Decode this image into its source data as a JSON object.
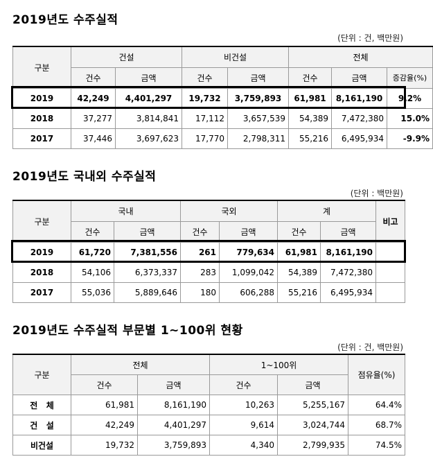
{
  "sections": [
    {
      "title": "2019년도 수주실적",
      "unit": "(단위 : 건, 백만원)",
      "headers": {
        "category": "구분",
        "group1": "건설",
        "group2": "비건설",
        "group3": "전체",
        "count": "건수",
        "amount": "금액",
        "rate": "증감율(%)"
      },
      "rows": [
        {
          "year": "2019",
          "c1": "42,249",
          "a1": "4,401,297",
          "c2": "19,732",
          "a2": "3,759,893",
          "c3": "61,981",
          "a3": "8,161,190",
          "rate": "9.2%"
        },
        {
          "year": "2018",
          "c1": "37,277",
          "a1": "3,814,841",
          "c2": "17,112",
          "a2": "3,657,539",
          "c3": "54,389",
          "a3": "7,472,380",
          "rate": "15.0%"
        },
        {
          "year": "2017",
          "c1": "37,446",
          "a1": "3,697,623",
          "c2": "17,770",
          "a2": "2,798,311",
          "c3": "55,216",
          "a3": "6,495,934",
          "rate": "-9.9%"
        }
      ]
    },
    {
      "title": "2019년도 국내외 수주실적",
      "unit": "(단위 : 백만원)",
      "headers": {
        "category": "구분",
        "group1": "국내",
        "group2": "국외",
        "group3": "계",
        "count": "건수",
        "amount": "금액",
        "note": "비고"
      },
      "rows": [
        {
          "year": "2019",
          "c1": "61,720",
          "a1": "7,381,556",
          "c2": "261",
          "a2": "779,634",
          "c3": "61,981",
          "a3": "8,161,190",
          "note": ""
        },
        {
          "year": "2018",
          "c1": "54,106",
          "a1": "6,373,337",
          "c2": "283",
          "a2": "1,099,042",
          "c3": "54,389",
          "a3": "7,472,380",
          "note": ""
        },
        {
          "year": "2017",
          "c1": "55,036",
          "a1": "5,889,646",
          "c2": "180",
          "a2": "606,288",
          "c3": "55,216",
          "a3": "6,495,934",
          "note": ""
        }
      ]
    },
    {
      "title": "2019년도 수주실적 부문별 1~100위 현황",
      "unit": "(단위 : 건, 백만원)",
      "headers": {
        "category": "구분",
        "group1": "전체",
        "group2": "1~100위",
        "count": "건수",
        "amount": "금액",
        "share": "점유율(%)"
      },
      "rows": [
        {
          "label": "전   체",
          "c1": "61,981",
          "a1": "8,161,190",
          "c2": "10,263",
          "a2": "5,255,167",
          "share": "64.4%"
        },
        {
          "label": "건   설",
          "c1": "42,249",
          "a1": "4,401,297",
          "c2": "9,614",
          "a2": "3,024,744",
          "share": "68.7%"
        },
        {
          "label": "비건설",
          "c1": "19,732",
          "a1": "3,759,893",
          "c2": "4,340",
          "a2": "2,799,935",
          "share": "74.5%"
        }
      ]
    }
  ]
}
